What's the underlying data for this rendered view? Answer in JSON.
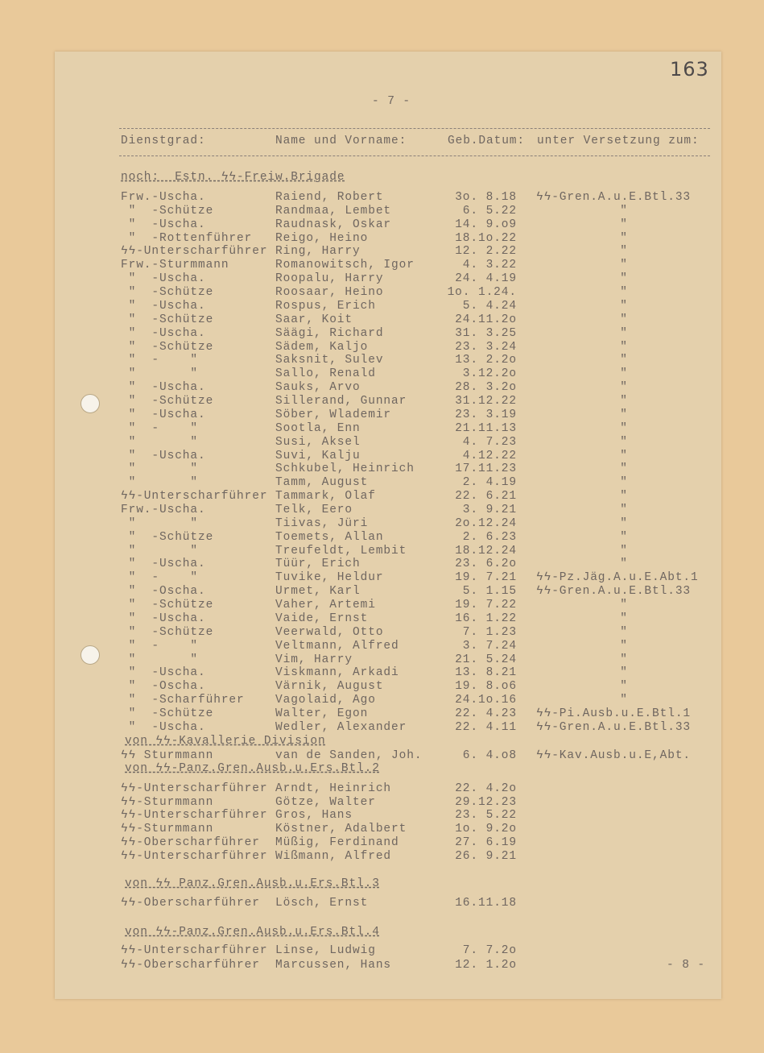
{
  "page_number": "163",
  "page_marker": "- 7 -",
  "next_page_marker": "- 8 -",
  "columns": {
    "rank": "Dienstgrad:",
    "name": "Name und Vorname:",
    "date": "Geb.Datum:",
    "unit": "unter Versetzung zum:"
  },
  "sections": [
    {
      "heading": "noch:  Estn. ϟϟ-Freiw.Brigade",
      "rows": [
        {
          "rank": "Frw.-Uscha.",
          "name": "Raiend, Robert",
          "date": "3o. 8.18",
          "unit": "ϟϟ-Gren.A.u.E.Btl.33"
        },
        {
          "rank": " \"  -Schütze",
          "name": "Randmaa, Lembet",
          "date": "6. 5.22",
          "unit": "\""
        },
        {
          "rank": " \"  -Uscha.",
          "name": "Raudnask, Oskar",
          "date": "14. 9.o9",
          "unit": "\""
        },
        {
          "rank": " \"  -Rottenführer",
          "name": "Reigo, Heino",
          "date": "18.1o.22",
          "unit": "\""
        },
        {
          "rank": "ϟϟ-Unterscharführer",
          "name": "Ring, Harry",
          "date": "12. 2.22",
          "unit": "\""
        },
        {
          "rank": "Frw.-Sturmmann",
          "name": "Romanowitsch, Igor",
          "date": "4. 3.22",
          "unit": "\""
        },
        {
          "rank": " \"  -Uscha.",
          "name": "Roopalu, Harry",
          "date": "24. 4.19",
          "unit": "\""
        },
        {
          "rank": " \"  -Schütze",
          "name": "Roosaar, Heino",
          "date": "1o. 1.24.",
          "unit": "\""
        },
        {
          "rank": " \"  -Uscha.",
          "name": "Rospus, Erich",
          "date": "5. 4.24",
          "unit": "\""
        },
        {
          "rank": " \"  -Schütze",
          "name": "Saar, Koit",
          "date": "24.11.2o",
          "unit": "\""
        },
        {
          "rank": " \"  -Uscha.",
          "name": "Säägi, Richard",
          "date": "31. 3.25",
          "unit": "\""
        },
        {
          "rank": " \"  -Schütze",
          "name": "Sädem, Kaljo",
          "date": "23. 3.24",
          "unit": "\""
        },
        {
          "rank": " \"  -    \"",
          "name": "Saksnit, Sulev",
          "date": "13. 2.2o",
          "unit": "\""
        },
        {
          "rank": " \"       \"",
          "name": "Sallo, Renald",
          "date": "3.12.2o",
          "unit": "\""
        },
        {
          "rank": " \"  -Uscha.",
          "name": "Sauks, Arvo",
          "date": "28. 3.2o",
          "unit": "\""
        },
        {
          "rank": " \"  -Schütze",
          "name": "Sillerand, Gunnar",
          "date": "31.12.22",
          "unit": "\""
        },
        {
          "rank": " \"  -Uscha.",
          "name": "Söber, Wlademir",
          "date": "23. 3.19",
          "unit": "\""
        },
        {
          "rank": " \"  -    \"",
          "name": "Sootla, Enn",
          "date": "21.11.13",
          "unit": "\""
        },
        {
          "rank": " \"       \"",
          "name": "Susi, Aksel",
          "date": "4. 7.23",
          "unit": "\""
        },
        {
          "rank": " \"  -Uscha.",
          "name": "Suvi, Kalju",
          "date": "4.12.22",
          "unit": "\""
        },
        {
          "rank": " \"       \"",
          "name": "Schkubel, Heinrich",
          "date": "17.11.23",
          "unit": "\""
        },
        {
          "rank": " \"       \"",
          "name": "Tamm, August",
          "date": "2. 4.19",
          "unit": "\""
        },
        {
          "rank": "ϟϟ-Unterscharführer",
          "name": "Tammark, Olaf",
          "date": "22. 6.21",
          "unit": "\""
        },
        {
          "rank": "Frw.-Uscha.",
          "name": "Telk, Eero",
          "date": "3. 9.21",
          "unit": "\""
        },
        {
          "rank": " \"       \"",
          "name": "Tiivas, Jüri",
          "date": "2o.12.24",
          "unit": "\""
        },
        {
          "rank": " \"  -Schütze",
          "name": "Toemets, Allan",
          "date": "2. 6.23",
          "unit": "\""
        },
        {
          "rank": " \"       \"",
          "name": "Treufeldt, Lembit",
          "date": "18.12.24",
          "unit": "\""
        },
        {
          "rank": " \"  -Uscha.",
          "name": "Tüür, Erich",
          "date": "23. 6.2o",
          "unit": "\""
        },
        {
          "rank": " \"  -    \"",
          "name": "Tuvike, Heldur",
          "date": "19. 7.21",
          "unit": "ϟϟ-Pz.Jäg.A.u.E.Abt.1"
        },
        {
          "rank": " \"  -Oscha.",
          "name": "Urmet, Karl",
          "date": "5. 1.15",
          "unit": "ϟϟ-Gren.A.u.E.Btl.33"
        },
        {
          "rank": " \"  -Schütze",
          "name": "Vaher, Artemi",
          "date": "19. 7.22",
          "unit": "\""
        },
        {
          "rank": " \"  -Uscha.",
          "name": "Vaide, Ernst",
          "date": "16. 1.22",
          "unit": "\""
        },
        {
          "rank": " \"  -Schütze",
          "name": "Veerwald, Otto",
          "date": "7. 1.23",
          "unit": "\""
        },
        {
          "rank": " \"  -    \"",
          "name": "Veltmann, Alfred",
          "date": "3. 7.24",
          "unit": "\""
        },
        {
          "rank": " \"       \"",
          "name": "Vim, Harry",
          "date": "21. 5.24",
          "unit": "\""
        },
        {
          "rank": " \"  -Uscha.",
          "name": "Viskmann, Arkadi",
          "date": "13. 8.21",
          "unit": "\""
        },
        {
          "rank": " \"  -Oscha.",
          "name": "Värnik, August",
          "date": "19. 8.o6",
          "unit": "\""
        },
        {
          "rank": " \"  -Scharführer",
          "name": "Vagolaid, Ago",
          "date": "24.1o.16",
          "unit": "\""
        },
        {
          "rank": " \"  -Schütze",
          "name": "Walter, Egon",
          "date": "22. 4.23",
          "unit": "ϟϟ-Pi.Ausb.u.E.Btl.1"
        },
        {
          "rank": " \"  -Uscha.",
          "name": "Wedler, Alexander",
          "date": "22. 4.11",
          "unit": "ϟϟ-Gren.A.u.E.Btl.33"
        }
      ]
    },
    {
      "heading": "von ϟϟ-Kavallerie Division",
      "rows": [
        {
          "rank": "ϟϟ Sturmmann",
          "name": "van de Sanden, Joh.",
          "date": "6. 4.o8",
          "unit": "ϟϟ-Kav.Ausb.u.E,Abt."
        }
      ]
    },
    {
      "heading": "von ϟϟ-Panz.Gren.Ausb.u.Ers.Btl.2",
      "rows": [
        {
          "rank": "ϟϟ-Unterscharführer",
          "name": "Arndt, Heinrich",
          "date": "22. 4.2o",
          "unit": ""
        },
        {
          "rank": "ϟϟ-Sturmmann",
          "name": "Götze, Walter",
          "date": "29.12.23",
          "unit": ""
        },
        {
          "rank": "ϟϟ-Unterscharführer",
          "name": "Gros, Hans",
          "date": "23. 5.22",
          "unit": ""
        },
        {
          "rank": "ϟϟ-Sturmmann",
          "name": "Köstner, Adalbert",
          "date": "1o. 9.2o",
          "unit": ""
        },
        {
          "rank": "ϟϟ-Oberscharführer",
          "name": "Müßig, Ferdinand",
          "date": "27. 6.19",
          "unit": ""
        },
        {
          "rank": "ϟϟ-Unterscharführer",
          "name": "Wißmann, Alfred",
          "date": "26. 9.21",
          "unit": ""
        }
      ]
    },
    {
      "heading": "von ϟϟ Panz.Gren.Ausb.u.Ers.Btl.3",
      "rows": [
        {
          "rank": "ϟϟ-Oberscharführer",
          "name": "Lösch, Ernst",
          "date": "16.11.18",
          "unit": ""
        }
      ]
    },
    {
      "heading": "von ϟϟ-Panz.Gren.Ausb.u.Ers.Btl.4",
      "rows": [
        {
          "rank": "ϟϟ-Unterscharführer",
          "name": "Linse, Ludwig",
          "date": "7. 7.2o",
          "unit": ""
        },
        {
          "rank": "ϟϟ-Oberscharführer",
          "name": "Marcussen, Hans",
          "date": "12. 1.2o",
          "unit": ""
        }
      ]
    }
  ]
}
